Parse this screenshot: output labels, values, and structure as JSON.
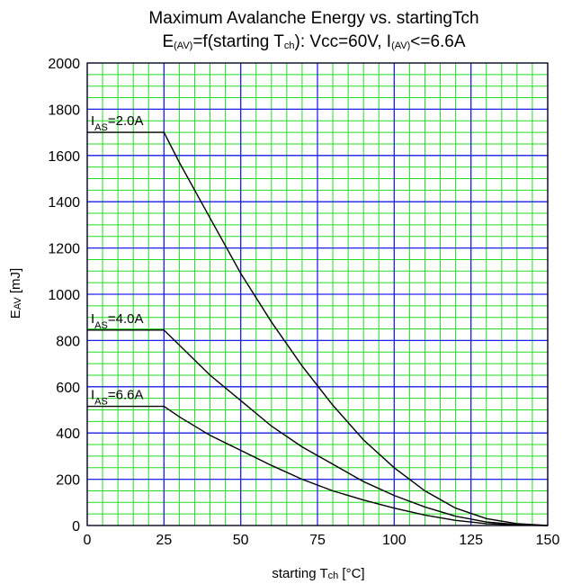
{
  "chart_data": {
    "type": "line",
    "title": "Maximum Avalanche Energy vs. startingTch",
    "subtitle_parts": [
      "E",
      "(AV)",
      "=f(starting T",
      "ch",
      "): Vcc=60V, I",
      "(AV)",
      "<=6.6A"
    ],
    "xlabel_parts": [
      "starting T",
      "ch",
      " [°C]"
    ],
    "ylabel_parts": [
      "E",
      "AV",
      " [mJ]"
    ],
    "xlim": [
      0,
      150
    ],
    "ylim": [
      0,
      2000
    ],
    "x_ticks": [
      "0",
      "25",
      "50",
      "75",
      "100",
      "125",
      "150"
    ],
    "y_ticks": [
      "0",
      "200",
      "400",
      "600",
      "800",
      "1000",
      "1200",
      "1400",
      "1600",
      "1800",
      "2000"
    ],
    "grid": true,
    "colors": {
      "major_grid": "#2222ee",
      "minor_grid": "#22dd22",
      "series": "#000000",
      "frame": "#000000"
    },
    "series": [
      {
        "label_parts": [
          "I",
          "AS",
          "=2.0A"
        ],
        "x": [
          0,
          25,
          30,
          40,
          50,
          60,
          70,
          80,
          90,
          100,
          110,
          120,
          130,
          140,
          150
        ],
        "y": [
          1700,
          1700,
          1570,
          1330,
          1090,
          880,
          690,
          520,
          370,
          250,
          150,
          75,
          30,
          8,
          0
        ]
      },
      {
        "label_parts": [
          "I",
          "AS",
          "=4.0A"
        ],
        "x": [
          0,
          25,
          30,
          40,
          50,
          60,
          70,
          80,
          90,
          100,
          110,
          120,
          130,
          140,
          150
        ],
        "y": [
          845,
          845,
          780,
          650,
          540,
          430,
          340,
          265,
          190,
          130,
          80,
          40,
          15,
          4,
          0
        ]
      },
      {
        "label_parts": [
          "I",
          "AS",
          "=6.6A"
        ],
        "x": [
          0,
          25,
          30,
          40,
          50,
          60,
          70,
          80,
          90,
          100,
          110,
          120,
          130,
          140,
          150
        ],
        "y": [
          515,
          515,
          470,
          390,
          325,
          260,
          200,
          150,
          110,
          75,
          45,
          22,
          8,
          2,
          0
        ]
      }
    ]
  }
}
